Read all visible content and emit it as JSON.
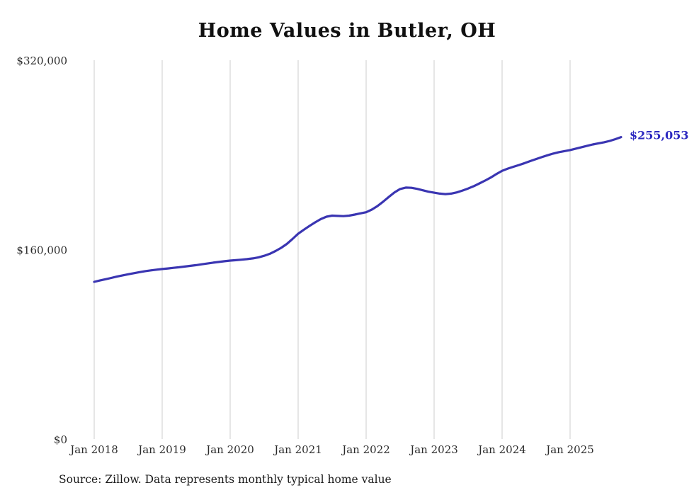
{
  "page": {
    "title": "Home Values in Butler, OH",
    "source_note": "Source: Zillow. Data represents monthly typical home value"
  },
  "chart_data": {
    "type": "line",
    "title": "Home Values in Butler, OH",
    "unit": "USD",
    "x_start": "2018-01",
    "x_interval": "month",
    "series": [
      {
        "name": "Typical home value",
        "values": [
          132800,
          133900,
          135000,
          136100,
          137200,
          138200,
          139200,
          140100,
          141000,
          141800,
          142500,
          143100,
          143600,
          144100,
          144600,
          145100,
          145700,
          146300,
          146900,
          147600,
          148300,
          149000,
          149600,
          150200,
          150700,
          151100,
          151500,
          152000,
          152600,
          153500,
          154800,
          156500,
          158800,
          161500,
          164800,
          169000,
          173400,
          176800,
          180000,
          183000,
          185800,
          187800,
          188700,
          188500,
          188300,
          188700,
          189600,
          190600,
          191600,
          193800,
          196800,
          200500,
          204500,
          208300,
          211200,
          212400,
          212200,
          211300,
          210100,
          208900,
          208100,
          207300,
          206900,
          207300,
          208300,
          209900,
          211600,
          213600,
          215900,
          218300,
          220900,
          223800,
          226600,
          228400,
          230000,
          231500,
          233100,
          234800,
          236500,
          238100,
          239700,
          241100,
          242300,
          243200,
          244100,
          245300,
          246500,
          247700,
          248800,
          249800,
          250700,
          251800,
          253300,
          255053
        ]
      }
    ],
    "final_value": 255053,
    "end_label": "$255,053",
    "ylim": [
      0,
      320000
    ],
    "yticks": [
      {
        "value": 0,
        "label": "$0"
      },
      {
        "value": 160000,
        "label": "$160,000"
      },
      {
        "value": 320000,
        "label": "$320,000"
      }
    ],
    "xticks": [
      {
        "label": "Jan 2018",
        "month_index": 0
      },
      {
        "label": "Jan 2019",
        "month_index": 12
      },
      {
        "label": "Jan 2020",
        "month_index": 24
      },
      {
        "label": "Jan 2021",
        "month_index": 36
      },
      {
        "label": "Jan 2022",
        "month_index": 48
      },
      {
        "label": "Jan 2023",
        "month_index": 60
      },
      {
        "label": "Jan 2024",
        "month_index": 72
      },
      {
        "label": "Jan 2025",
        "month_index": 84
      }
    ],
    "grid": "vertical-only",
    "legend": "none",
    "line_color": "#3a35b2",
    "label_color": "#2b28c0",
    "gridline_color": "#cccccc"
  }
}
